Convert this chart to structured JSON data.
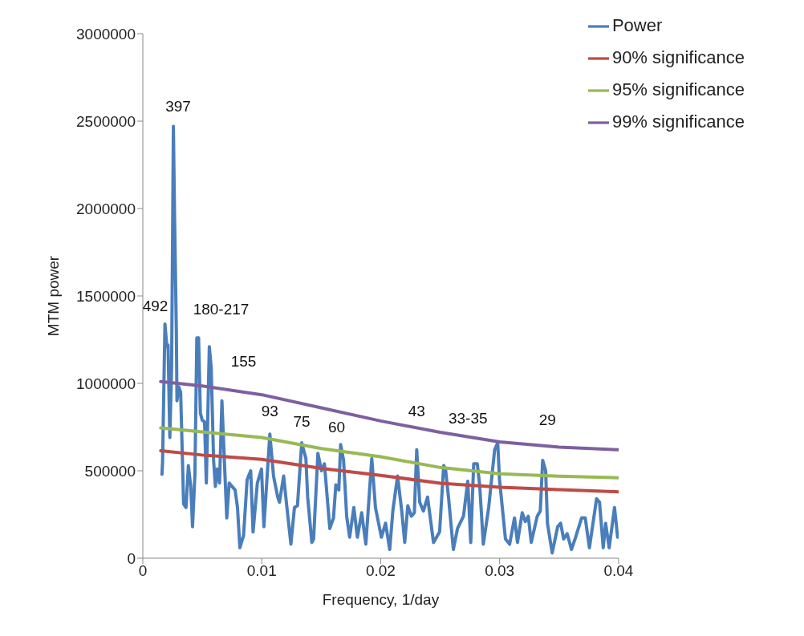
{
  "chart_data": {
    "type": "line",
    "xlabel": "Frequency, 1/day",
    "ylabel": "MTM power",
    "xlim": [
      0,
      0.04
    ],
    "xticks": [
      0,
      0.01,
      0.02,
      0.03,
      0.04
    ],
    "ylim": [
      0,
      3000000
    ],
    "yticks": [
      0,
      500000,
      1000000,
      1500000,
      2000000,
      2500000,
      3000000
    ],
    "grid": false,
    "legend": "top right",
    "marker": "none",
    "line_style": "solid",
    "series": [
      {
        "name": "Power",
        "color": "#4a7ebb",
        "x": [
          0.00161,
          0.00166,
          0.00186,
          0.00202,
          0.00212,
          0.00227,
          0.00242,
          0.00257,
          0.00267,
          0.00282,
          0.00287,
          0.00302,
          0.00318,
          0.00343,
          0.00363,
          0.00383,
          0.00403,
          0.00418,
          0.00438,
          0.00454,
          0.00469,
          0.00484,
          0.00499,
          0.00519,
          0.00534,
          0.00544,
          0.00559,
          0.00575,
          0.00595,
          0.0061,
          0.00625,
          0.00645,
          0.00665,
          0.0068,
          0.00706,
          0.00726,
          0.00751,
          0.00776,
          0.00796,
          0.00816,
          0.00847,
          0.00877,
          0.00907,
          0.00927,
          0.00963,
          0.00998,
          0.01018,
          0.01068,
          0.01099,
          0.01134,
          0.01149,
          0.01184,
          0.0121,
          0.01245,
          0.01275,
          0.013,
          0.01336,
          0.01371,
          0.01386,
          0.01421,
          0.01436,
          0.01472,
          0.01502,
          0.01527,
          0.01572,
          0.01603,
          0.01623,
          0.01648,
          0.01663,
          0.01688,
          0.01714,
          0.01739,
          0.01774,
          0.01804,
          0.0184,
          0.01875,
          0.01925,
          0.01956,
          0.02006,
          0.02041,
          0.02076,
          0.02102,
          0.02142,
          0.02177,
          0.02202,
          0.02228,
          0.02258,
          0.02283,
          0.02303,
          0.02328,
          0.02359,
          0.02394,
          0.02444,
          0.02495,
          0.0253,
          0.02545,
          0.0257,
          0.02611,
          0.02646,
          0.02696,
          0.02732,
          0.02757,
          0.02782,
          0.02812,
          0.02832,
          0.02863,
          0.02908,
          0.02958,
          0.02984,
          0.02999,
          0.03049,
          0.03084,
          0.03125,
          0.0315,
          0.0319,
          0.03216,
          0.03241,
          0.03266,
          0.03316,
          0.03342,
          0.03362,
          0.03387,
          0.03402,
          0.03442,
          0.03488,
          0.03513,
          0.03538,
          0.03568,
          0.03604,
          0.03639,
          0.03689,
          0.0372,
          0.03755,
          0.03815,
          0.0384,
          0.03871,
          0.03891,
          0.03921,
          0.03966,
          0.03992
        ],
        "values": [
          480000,
          550000,
          1340000,
          1210000,
          1220000,
          690000,
          1090000,
          2470000,
          1950000,
          1290000,
          900000,
          980000,
          950000,
          310000,
          290000,
          530000,
          410000,
          180000,
          480000,
          1260000,
          1260000,
          830000,
          790000,
          780000,
          430000,
          740000,
          1210000,
          1090000,
          560000,
          410000,
          510000,
          430000,
          900000,
          650000,
          230000,
          430000,
          410000,
          390000,
          290000,
          60000,
          130000,
          450000,
          500000,
          150000,
          430000,
          510000,
          180000,
          710000,
          470000,
          350000,
          320000,
          470000,
          300000,
          80000,
          290000,
          300000,
          660000,
          570000,
          350000,
          90000,
          110000,
          600000,
          500000,
          540000,
          170000,
          230000,
          420000,
          390000,
          650000,
          560000,
          240000,
          120000,
          290000,
          120000,
          260000,
          80000,
          570000,
          290000,
          120000,
          200000,
          50000,
          270000,
          470000,
          270000,
          90000,
          300000,
          240000,
          260000,
          620000,
          320000,
          270000,
          350000,
          90000,
          150000,
          530000,
          510000,
          350000,
          50000,
          170000,
          240000,
          440000,
          90000,
          540000,
          540000,
          420000,
          80000,
          290000,
          620000,
          660000,
          450000,
          110000,
          80000,
          230000,
          90000,
          260000,
          210000,
          240000,
          90000,
          240000,
          270000,
          560000,
          500000,
          200000,
          30000,
          180000,
          200000,
          110000,
          140000,
          50000,
          120000,
          230000,
          230000,
          60000,
          340000,
          320000,
          60000,
          200000,
          60000,
          290000,
          120000
        ]
      },
      {
        "name": "90% significance",
        "color": "#be4b48",
        "x": [
          0.0015,
          0.005,
          0.01,
          0.015,
          0.02,
          0.025,
          0.03,
          0.035,
          0.04
        ],
        "values": [
          615000,
          590000,
          565000,
          514000,
          474000,
          429000,
          406000,
          392000,
          380000
        ]
      },
      {
        "name": "95% significance",
        "color": "#98b954",
        "x": [
          0.0015,
          0.005,
          0.01,
          0.015,
          0.02,
          0.025,
          0.03,
          0.035,
          0.04
        ],
        "values": [
          745000,
          722000,
          690000,
          627000,
          580000,
          519000,
          483000,
          469000,
          460000
        ]
      },
      {
        "name": "99% significance",
        "color": "#7d60a0",
        "x": [
          0.0015,
          0.005,
          0.01,
          0.015,
          0.02,
          0.025,
          0.03,
          0.035,
          0.04
        ],
        "values": [
          1010000,
          985000,
          935000,
          860000,
          785000,
          720000,
          665000,
          635000,
          620000
        ]
      }
    ],
    "annotations": [
      {
        "text": "492",
        "x": 0.00186,
        "y": 1340000
      },
      {
        "text": "397",
        "x": 0.00257,
        "y": 2470000
      },
      {
        "text": "180-217",
        "x": 0.00469,
        "y": 1260000
      },
      {
        "text": "155",
        "x": 0.00665,
        "y": 900000
      },
      {
        "text": "93",
        "x": 0.01068,
        "y": 710000
      },
      {
        "text": "75",
        "x": 0.01336,
        "y": 660000
      },
      {
        "text": "60",
        "x": 0.01663,
        "y": 650000
      },
      {
        "text": "43",
        "x": 0.02303,
        "y": 620000
      },
      {
        "text": "33-35",
        "x": 0.02984,
        "y": 660000
      },
      {
        "text": "29",
        "x": 0.03362,
        "y": 560000
      }
    ]
  }
}
